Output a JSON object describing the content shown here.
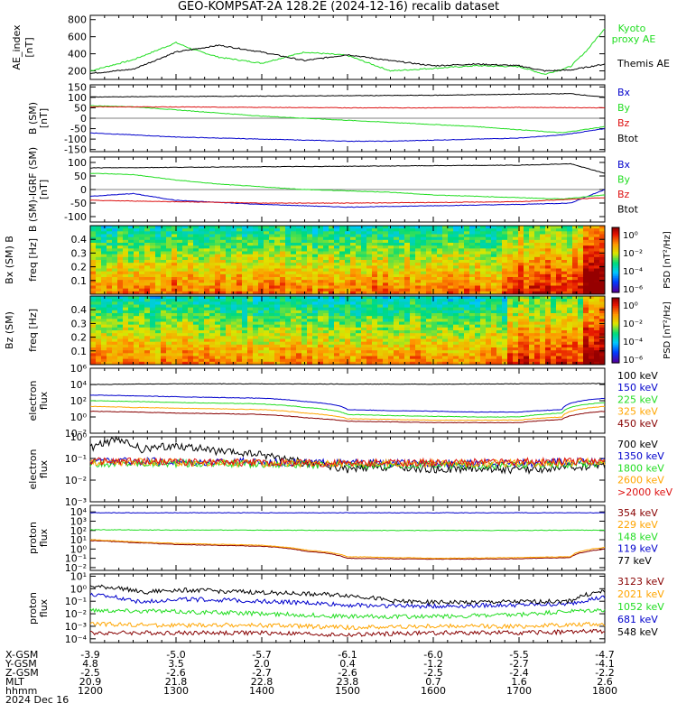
{
  "title": "GEO-KOMPSAT-2A 128.2E (2024-12-16) recalib dataset",
  "colors": {
    "black": "#000000",
    "green": "#22dd22",
    "red": "#dd1111",
    "blue": "#0000cc",
    "orange": "#ffa500",
    "dark_red": "#880000",
    "axis": "#000000"
  },
  "chart_data": [
    {
      "id": "ae",
      "type": "line",
      "ylabel": "AE_index [nT]",
      "ylim": [
        100,
        850
      ],
      "yticks": [
        "800",
        "600",
        "400",
        "200"
      ],
      "series": [
        {
          "name": "Kyoto proxy AE",
          "color": "green",
          "x": [
            12.0,
            12.5,
            13.0,
            13.2,
            13.5,
            14.0,
            14.5,
            15.0,
            15.5,
            16.0,
            16.5,
            17.0,
            17.3,
            17.6,
            17.8,
            18.0
          ],
          "y": [
            200,
            330,
            530,
            450,
            360,
            290,
            420,
            380,
            200,
            230,
            260,
            250,
            160,
            250,
            450,
            700
          ]
        },
        {
          "name": "Themis AE",
          "color": "black",
          "x": [
            12.0,
            12.5,
            13.0,
            13.5,
            14.0,
            14.5,
            15.0,
            15.5,
            16.0,
            16.5,
            17.0,
            17.3,
            17.6,
            18.0
          ],
          "y": [
            170,
            220,
            420,
            500,
            420,
            320,
            390,
            320,
            260,
            280,
            260,
            200,
            210,
            280
          ]
        }
      ]
    },
    {
      "id": "b_sm",
      "type": "line",
      "ylabel": "B (SM) [nT]",
      "ylim": [
        -160,
        160
      ],
      "yticks": [
        "150",
        "100",
        "50",
        "0",
        "-50",
        "-100",
        "-150"
      ],
      "series": [
        {
          "name": "Bx",
          "color": "blue",
          "x": [
            12.0,
            12.5,
            13.0,
            13.5,
            14.0,
            14.5,
            15.0,
            15.5,
            16.0,
            16.5,
            17.0,
            17.5,
            18.0
          ],
          "y": [
            -70,
            -80,
            -90,
            -95,
            -100,
            -105,
            -110,
            -110,
            -105,
            -100,
            -95,
            -80,
            -50
          ]
        },
        {
          "name": "By",
          "color": "green",
          "x": [
            12.0,
            12.5,
            13.0,
            13.5,
            14.0,
            14.5,
            15.0,
            15.5,
            16.0,
            16.5,
            17.0,
            17.5,
            18.0
          ],
          "y": [
            60,
            55,
            40,
            25,
            10,
            0,
            -10,
            -20,
            -30,
            -40,
            -55,
            -70,
            -40
          ]
        },
        {
          "name": "Bz",
          "color": "red",
          "x": [
            12.0,
            13.0,
            14.0,
            15.0,
            16.0,
            17.0,
            18.0
          ],
          "y": [
            55,
            54,
            52,
            50,
            50,
            52,
            50
          ]
        },
        {
          "name": "Btot",
          "color": "black",
          "x": [
            12.0,
            13.0,
            14.0,
            15.0,
            16.0,
            17.0,
            17.6,
            18.0
          ],
          "y": [
            102,
            104,
            106,
            108,
            110,
            115,
            118,
            100
          ]
        }
      ]
    },
    {
      "id": "b_igrf",
      "type": "line",
      "ylabel": "B (SM)-IGRF (SM) [nT]",
      "ylim": [
        -120,
        120
      ],
      "yticks": [
        "100",
        "50",
        "0",
        "-50",
        "-100"
      ],
      "series": [
        {
          "name": "Bx",
          "color": "blue",
          "x": [
            12.0,
            12.5,
            13.0,
            14.0,
            15.0,
            16.0,
            17.0,
            17.6,
            18.0
          ],
          "y": [
            -25,
            -15,
            -40,
            -55,
            -65,
            -60,
            -55,
            -50,
            0
          ]
        },
        {
          "name": "By",
          "color": "green",
          "x": [
            12.0,
            12.5,
            13.0,
            13.5,
            14.0,
            14.5,
            15.0,
            15.5,
            16.0,
            16.5,
            17.0,
            17.5,
            18.0
          ],
          "y": [
            60,
            55,
            35,
            20,
            10,
            0,
            -5,
            -10,
            -20,
            -25,
            -30,
            -35,
            -20
          ]
        },
        {
          "name": "Bz",
          "color": "red",
          "x": [
            12.0,
            13.0,
            14.0,
            15.0,
            16.0,
            17.0,
            18.0
          ],
          "y": [
            -40,
            -45,
            -50,
            -50,
            -48,
            -45,
            -30
          ]
        },
        {
          "name": "Btot",
          "color": "black",
          "x": [
            12.0,
            13.0,
            14.0,
            15.0,
            16.0,
            17.0,
            17.6,
            18.0
          ],
          "y": [
            80,
            82,
            84,
            86,
            88,
            90,
            95,
            60
          ]
        }
      ]
    },
    {
      "id": "bx_spec",
      "type": "heatmap",
      "ylabel": "Bx (SM) B",
      "ylabel2": "freq [Hz]",
      "ylim": [
        0,
        0.5
      ],
      "yticks": [
        "0.4",
        "0.3",
        "0.2",
        "0.1"
      ],
      "colorbar_label": "PSD [nT²/Hz]",
      "colorbar_ticks": [
        "10⁰",
        "10⁻²",
        "10⁻⁴",
        "10⁻⁶"
      ]
    },
    {
      "id": "bz_spec",
      "type": "heatmap",
      "ylabel": "Bz (SM)",
      "ylabel2": "freq [Hz]",
      "ylim": [
        0,
        0.5
      ],
      "yticks": [
        "0.4",
        "0.3",
        "0.2",
        "0.1"
      ],
      "colorbar_label": "PSD [nT²/Hz]",
      "colorbar_ticks": [
        "10⁰",
        "10⁻²",
        "10⁻⁴",
        "10⁻⁶"
      ]
    },
    {
      "id": "elec_lo",
      "type": "line",
      "log": true,
      "ylabel": "electron flux",
      "ylim": [
        0.01,
        1000000
      ],
      "yticks": [
        "10⁶",
        "10⁴",
        "10²",
        "10⁰",
        "10⁻²"
      ],
      "series": [
        {
          "name": "100 keV",
          "color": "black",
          "x": [
            12.0,
            13.0,
            14.0,
            15.0,
            16.0,
            17.0,
            18.0
          ],
          "y": [
            10000,
            12000,
            12000,
            11000,
            11000,
            12000,
            13000
          ]
        },
        {
          "name": "150 keV",
          "color": "blue",
          "x": [
            12.0,
            12.5,
            13.0,
            14.0,
            14.5,
            15.0,
            15.5,
            16.0,
            16.5,
            17.0,
            17.5,
            18.0
          ],
          "y": [
            500,
            400,
            300,
            200,
            80,
            8,
            6,
            5,
            4,
            4,
            8,
            200
          ]
        },
        {
          "name": "225 keV",
          "color": "green",
          "x": [
            12.0,
            12.5,
            13.0,
            14.0,
            14.5,
            15.0,
            15.5,
            16.0,
            16.5,
            17.0,
            17.5,
            18.0
          ],
          "y": [
            100,
            80,
            60,
            40,
            15,
            2,
            1.5,
            1.2,
            1,
            1,
            3,
            60
          ]
        },
        {
          "name": "325 keV",
          "color": "orange",
          "x": [
            12.0,
            12.5,
            13.0,
            14.0,
            14.5,
            15.0,
            15.5,
            16.0,
            16.5,
            17.0,
            17.5,
            18.0
          ],
          "y": [
            20,
            15,
            12,
            8,
            3,
            0.6,
            0.5,
            0.4,
            0.4,
            0.4,
            1,
            20
          ]
        },
        {
          "name": "450 keV",
          "color": "dark_red",
          "x": [
            12.0,
            12.5,
            13.0,
            14.0,
            14.5,
            15.0,
            15.5,
            16.0,
            16.5,
            17.0,
            17.5,
            18.0
          ],
          "y": [
            5,
            4,
            3,
            2,
            0.8,
            0.3,
            0.25,
            0.2,
            0.2,
            0.2,
            0.5,
            5
          ]
        }
      ]
    },
    {
      "id": "elec_hi",
      "type": "line",
      "log": true,
      "ylabel": "electron flux",
      "ylim": [
        0.001,
        1
      ],
      "yticks": [
        "10⁰",
        "10⁻¹",
        "10⁻²",
        "10⁻³"
      ],
      "series": [
        {
          "name": "700 keV",
          "color": "black",
          "x": [
            12.0,
            12.3,
            12.6,
            13.0,
            13.5,
            14.0,
            14.5,
            15.0,
            15.5,
            16.0,
            16.5,
            17.0,
            17.5,
            18.0
          ],
          "y": [
            0.3,
            0.7,
            0.25,
            0.4,
            0.2,
            0.15,
            0.06,
            0.03,
            0.04,
            0.03,
            0.035,
            0.03,
            0.035,
            0.05
          ]
        },
        {
          "name": "1350 keV",
          "color": "blue",
          "x": [
            12.0,
            13.0,
            14.0,
            15.0,
            16.0,
            17.0,
            18.0
          ],
          "y": [
            0.08,
            0.07,
            0.07,
            0.06,
            0.06,
            0.06,
            0.07
          ]
        },
        {
          "name": "1800 keV",
          "color": "green",
          "x": [
            12.0,
            13.0,
            14.0,
            15.0,
            16.0,
            17.0,
            18.0
          ],
          "y": [
            0.06,
            0.06,
            0.055,
            0.05,
            0.05,
            0.05,
            0.06
          ]
        },
        {
          "name": "2600 keV",
          "color": "orange",
          "x": [
            12.0,
            13.0,
            14.0,
            15.0,
            16.0,
            17.0,
            18.0
          ],
          "y": [
            0.07,
            0.065,
            0.06,
            0.06,
            0.06,
            0.06,
            0.07
          ]
        },
        {
          "name": ">2000 keV",
          "color": "red",
          "x": [
            12.0,
            13.0,
            14.0,
            15.0,
            16.0,
            17.0,
            18.0
          ],
          "y": [
            0.075,
            0.07,
            0.065,
            0.06,
            0.065,
            0.07,
            0.075
          ]
        }
      ]
    },
    {
      "id": "prot_lo",
      "type": "line",
      "log": true,
      "ylabel": "proton flux",
      "ylim": [
        0.005,
        50000
      ],
      "yticks": [
        "10⁴",
        "10³",
        "10²",
        "10¹",
        "10⁰",
        "10⁻¹",
        "10⁻²"
      ],
      "series": [
        {
          "name": "354 keV",
          "color": "dark_red",
          "x": [
            12.0,
            12.5,
            13.0,
            14.0,
            14.5,
            15.0,
            16.0,
            17.0,
            17.6,
            18.0
          ],
          "y": [
            8,
            5,
            3,
            2,
            0.6,
            0.1,
            0.08,
            0.09,
            0.12,
            1
          ]
        },
        {
          "name": "229 keV",
          "color": "orange",
          "x": [
            12.0,
            12.5,
            13.0,
            14.0,
            14.5,
            15.0,
            16.0,
            17.0,
            17.6,
            18.0
          ],
          "y": [
            10,
            6,
            4,
            2.5,
            0.8,
            0.15,
            0.1,
            0.12,
            0.15,
            1.5
          ]
        },
        {
          "name": "148 keV",
          "color": "green",
          "x": [
            12.0,
            13.0,
            14.0,
            15.0,
            16.0,
            17.0,
            18.0
          ],
          "y": [
            120,
            110,
            110,
            100,
            100,
            100,
            110
          ]
        },
        {
          "name": "119 keV",
          "color": "blue",
          "x": [
            12.0,
            13.0,
            14.0,
            15.0,
            16.0,
            17.0,
            18.0
          ],
          "y": [
            8000,
            8000,
            8000,
            8000,
            8000,
            8000,
            8000
          ]
        },
        {
          "name": "77 keV",
          "color": "black",
          "x": [],
          "y": []
        }
      ]
    },
    {
      "id": "prot_hi",
      "type": "line",
      "log": true,
      "ylabel": "proton flux",
      "ylim": [
        5e-05,
        15
      ],
      "yticks": [
        "10¹",
        "10⁰",
        "10⁻¹",
        "10⁻²",
        "10⁻³",
        "10⁻⁴"
      ],
      "series": [
        {
          "name": "3123 keV",
          "color": "dark_red",
          "x": [
            12.0,
            13.0,
            14.0,
            15.0,
            16.0,
            17.0,
            18.0
          ],
          "y": [
            0.0003,
            0.0003,
            0.0003,
            0.0002,
            0.0003,
            0.0003,
            0.0004
          ]
        },
        {
          "name": "2021 keV",
          "color": "orange",
          "x": [
            12.0,
            13.0,
            14.0,
            15.0,
            16.0,
            17.0,
            18.0
          ],
          "y": [
            0.0015,
            0.0012,
            0.0012,
            0.0008,
            0.001,
            0.001,
            0.0015
          ]
        },
        {
          "name": "1052 keV",
          "color": "green",
          "x": [
            12.0,
            13.0,
            14.0,
            15.0,
            16.0,
            17.0,
            18.0
          ],
          "y": [
            0.02,
            0.015,
            0.01,
            0.006,
            0.006,
            0.008,
            0.02
          ]
        },
        {
          "name": "681 keV",
          "color": "blue",
          "x": [
            12.0,
            12.3,
            12.6,
            13.0,
            14.0,
            15.0,
            16.0,
            17.0,
            17.6,
            18.0
          ],
          "y": [
            0.3,
            0.2,
            0.08,
            0.15,
            0.1,
            0.05,
            0.04,
            0.05,
            0.06,
            0.2
          ]
        },
        {
          "name": "548 keV",
          "color": "black",
          "x": [
            12.0,
            12.3,
            12.6,
            13.0,
            14.0,
            15.0,
            15.5,
            16.0,
            17.0,
            17.6,
            18.0
          ],
          "y": [
            1.5,
            1.2,
            0.5,
            0.8,
            0.5,
            0.3,
            0.1,
            0.08,
            0.09,
            0.1,
            0.6
          ]
        }
      ]
    }
  ],
  "legend_left": {
    "ae": [
      "Kyoto",
      "proxy AE",
      "Themis AE"
    ]
  },
  "ephemeris": {
    "row_labels": [
      "X-GSM",
      "Y-GSM",
      "Z-GSM",
      "MLT",
      "hhmm",
      "2024 Dec 16"
    ],
    "columns": [
      {
        "x": "-3.9",
        "y": "4.8",
        "z": "-2.5",
        "mlt": "20.9",
        "hhmm": "1200"
      },
      {
        "x": "-5.0",
        "y": "3.5",
        "z": "-2.6",
        "mlt": "21.8",
        "hhmm": "1300"
      },
      {
        "x": "-5.7",
        "y": "2.0",
        "z": "-2.7",
        "mlt": "22.8",
        "hhmm": "1400"
      },
      {
        "x": "-6.1",
        "y": "0.4",
        "z": "-2.6",
        "mlt": "23.8",
        "hhmm": "1500"
      },
      {
        "x": "-6.0",
        "y": "-1.2",
        "z": "-2.5",
        "mlt": "0.7",
        "hhmm": "1600"
      },
      {
        "x": "-5.5",
        "y": "-2.7",
        "z": "-2.4",
        "mlt": "1.6",
        "hhmm": "1700"
      },
      {
        "x": "-4.7",
        "y": "-4.1",
        "z": "-2.2",
        "mlt": "2.6",
        "hhmm": "1800"
      }
    ]
  }
}
